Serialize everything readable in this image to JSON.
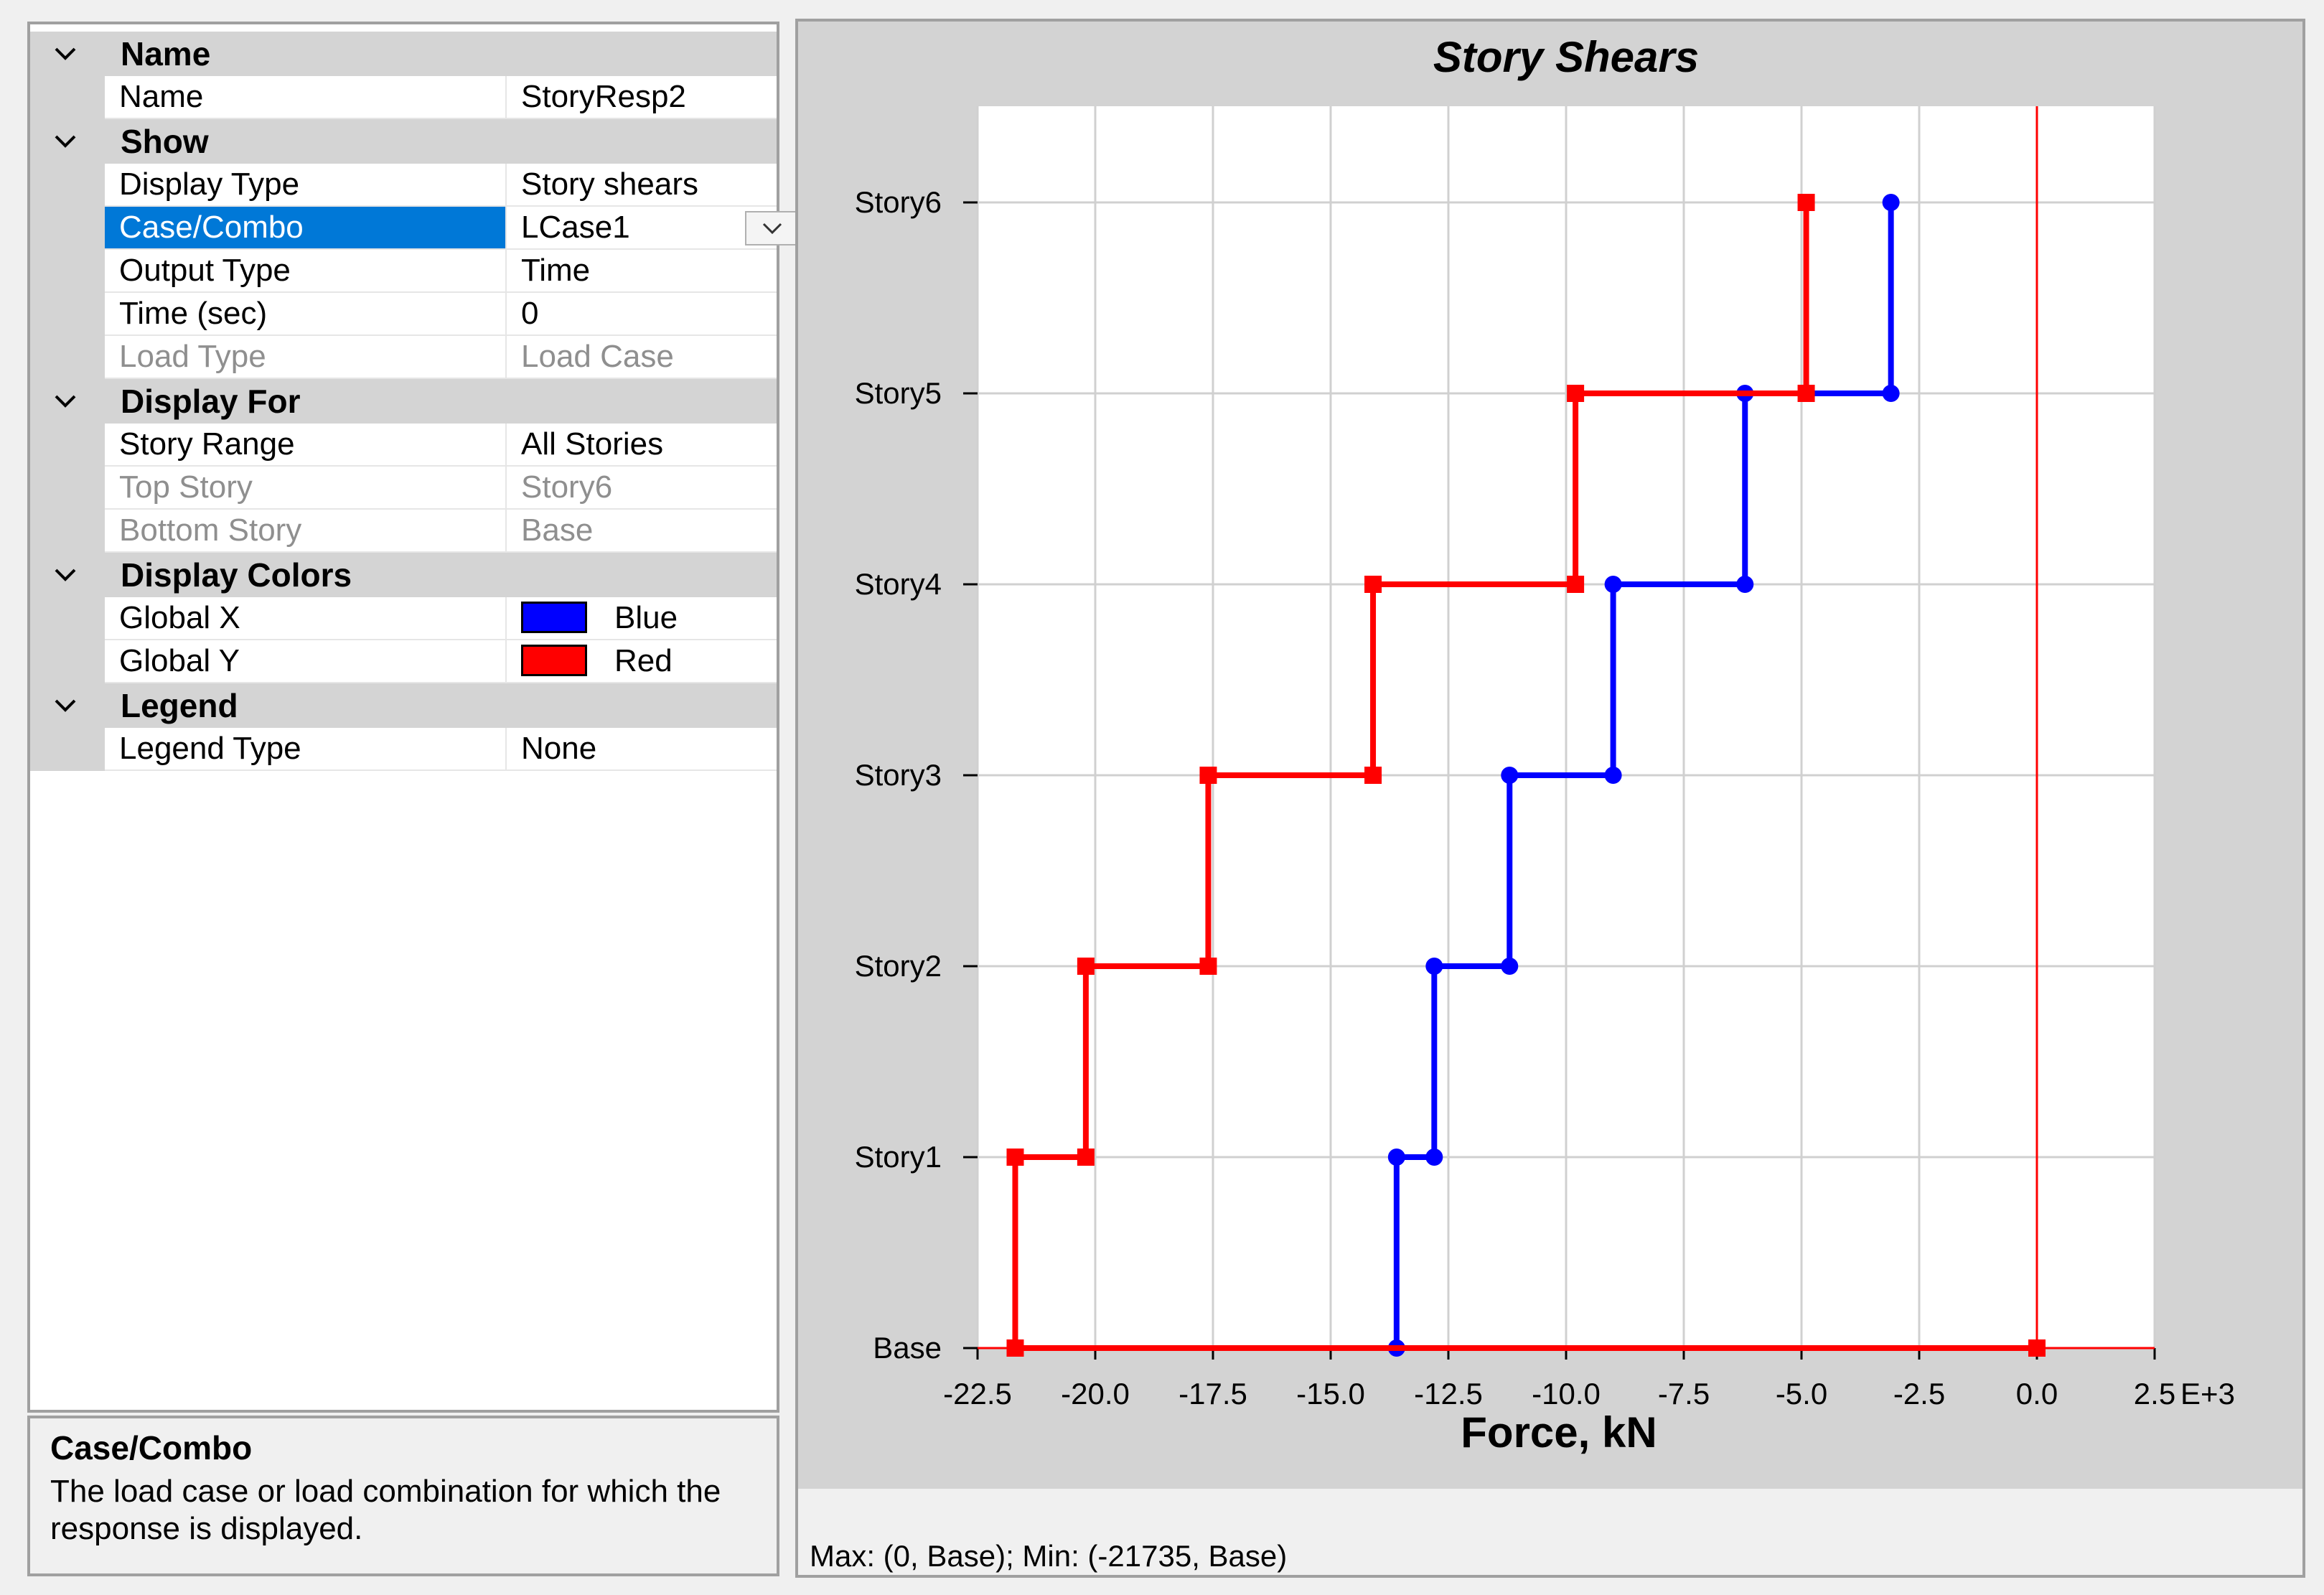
{
  "properties": {
    "categories": [
      {
        "label": "Name"
      },
      {
        "label": "Show"
      },
      {
        "label": "Display For"
      },
      {
        "label": "Display Colors"
      },
      {
        "label": "Legend"
      }
    ],
    "rows": {
      "name": {
        "label": "Name",
        "value": "StoryResp2"
      },
      "display_type": {
        "label": "Display Type",
        "value": "Story shears"
      },
      "case_combo": {
        "label": "Case/Combo",
        "value": "LCase1"
      },
      "output_type": {
        "label": "Output Type",
        "value": "Time"
      },
      "time_sec": {
        "label": "Time (sec)",
        "value": "0"
      },
      "load_type": {
        "label": "Load Type",
        "value": "Load Case"
      },
      "story_range": {
        "label": "Story Range",
        "value": "All Stories"
      },
      "top_story": {
        "label": "Top Story",
        "value": "Story6"
      },
      "bottom_story": {
        "label": "Bottom Story",
        "value": "Base"
      },
      "global_x": {
        "label": "Global X",
        "value": "Blue",
        "color": "#0000ff"
      },
      "global_y": {
        "label": "Global Y",
        "value": "Red",
        "color": "#ff0000"
      },
      "legend_type": {
        "label": "Legend Type",
        "value": "None"
      }
    },
    "selected_color": "#0078d7"
  },
  "help": {
    "title": "Case/Combo",
    "text": "The load case or load combination for which the response is displayed."
  },
  "status": {
    "text": "Max: (0, Base);   Min: (-21735, Base)"
  },
  "chart_data": {
    "type": "line",
    "title": "Story Shears",
    "xlabel": "Force, kN",
    "x_multiplier_label": "E+3",
    "xlim": [
      -22.5,
      2.5
    ],
    "x_ticks": [
      -22.5,
      -20.0,
      -17.5,
      -15.0,
      -12.5,
      -10.0,
      -7.5,
      -5.0,
      -2.5,
      0.0,
      2.5
    ],
    "x_tick_labels": [
      "-22.5",
      "-20.0",
      "-17.5",
      "-15.0",
      "-12.5",
      "-10.0",
      "-7.5",
      "-5.0",
      "-2.5",
      "0.0",
      "2.5"
    ],
    "y_categories": [
      "Base",
      "Story1",
      "Story2",
      "Story3",
      "Story4",
      "Story5",
      "Story6"
    ],
    "grid": true,
    "reference_line_x": 0,
    "series": [
      {
        "color": "#0000ff",
        "marker": "circle",
        "points": [
          [
            -13.6,
            "Base"
          ],
          [
            -13.6,
            "Story1"
          ],
          [
            -12.8,
            "Story1"
          ],
          [
            -12.8,
            "Story2"
          ],
          [
            -11.2,
            "Story2"
          ],
          [
            -11.2,
            "Story3"
          ],
          [
            -9.0,
            "Story3"
          ],
          [
            -9.0,
            "Story4"
          ],
          [
            -6.2,
            "Story4"
          ],
          [
            -6.2,
            "Story5"
          ],
          [
            -3.1,
            "Story5"
          ],
          [
            -3.1,
            "Story6"
          ]
        ]
      },
      {
        "color": "#ff0000",
        "marker": "square",
        "points": [
          [
            0.0,
            "Base"
          ],
          [
            -21.7,
            "Base"
          ],
          [
            -21.7,
            "Story1"
          ],
          [
            -20.2,
            "Story1"
          ],
          [
            -20.2,
            "Story2"
          ],
          [
            -17.6,
            "Story2"
          ],
          [
            -17.6,
            "Story3"
          ],
          [
            -14.1,
            "Story3"
          ],
          [
            -14.1,
            "Story4"
          ],
          [
            -9.8,
            "Story4"
          ],
          [
            -9.8,
            "Story5"
          ],
          [
            -4.9,
            "Story5"
          ],
          [
            -4.9,
            "Story6"
          ]
        ]
      }
    ]
  }
}
